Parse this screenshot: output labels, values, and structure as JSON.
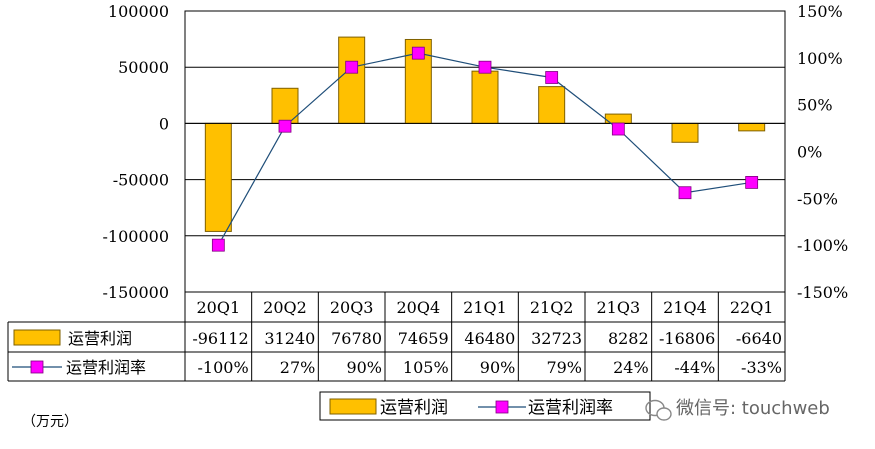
{
  "chart_data": {
    "type": "bar",
    "categories": [
      "20Q1",
      "20Q2",
      "20Q3",
      "20Q4",
      "21Q1",
      "21Q2",
      "21Q3",
      "21Q4",
      "22Q1"
    ],
    "series": [
      {
        "name": "运营利润",
        "type": "bar",
        "axis": "left",
        "values": [
          -96112,
          31240,
          76780,
          74659,
          46480,
          32723,
          8282,
          -16806,
          -6640
        ],
        "labels": [
          "-96112",
          "31240",
          "76780",
          "74659",
          "46480",
          "32723",
          "8282",
          "-16806",
          "-6640"
        ],
        "color": "#ffc000"
      },
      {
        "name": "运营利润率",
        "type": "line",
        "axis": "right",
        "values": [
          -100,
          27,
          90,
          105,
          90,
          79,
          24,
          -44,
          -33
        ],
        "labels": [
          "-100%",
          "27%",
          "90%",
          "105%",
          "90%",
          "79%",
          "24%",
          "-44%",
          "-33%"
        ],
        "color": "#ff00ff"
      }
    ],
    "y_left": {
      "min": -150000,
      "max": 100000,
      "step": 50000,
      "ticks": [
        "100000",
        "50000",
        "0",
        "-50000",
        "-100000",
        "-150000"
      ]
    },
    "y_right": {
      "min": -150,
      "max": 150,
      "step": 50,
      "ticks": [
        "150%",
        "100%",
        "50%",
        "0%",
        "-50%",
        "-100%",
        "-150%"
      ]
    },
    "grid": true,
    "legend": "bottom",
    "unit_label": "（万元）"
  },
  "watermark": "微信号: touchweb",
  "colors": {
    "bar": "#ffc000",
    "bar_border": "#7f6000",
    "line": "#1f4e79",
    "marker": "#ff00ff"
  }
}
